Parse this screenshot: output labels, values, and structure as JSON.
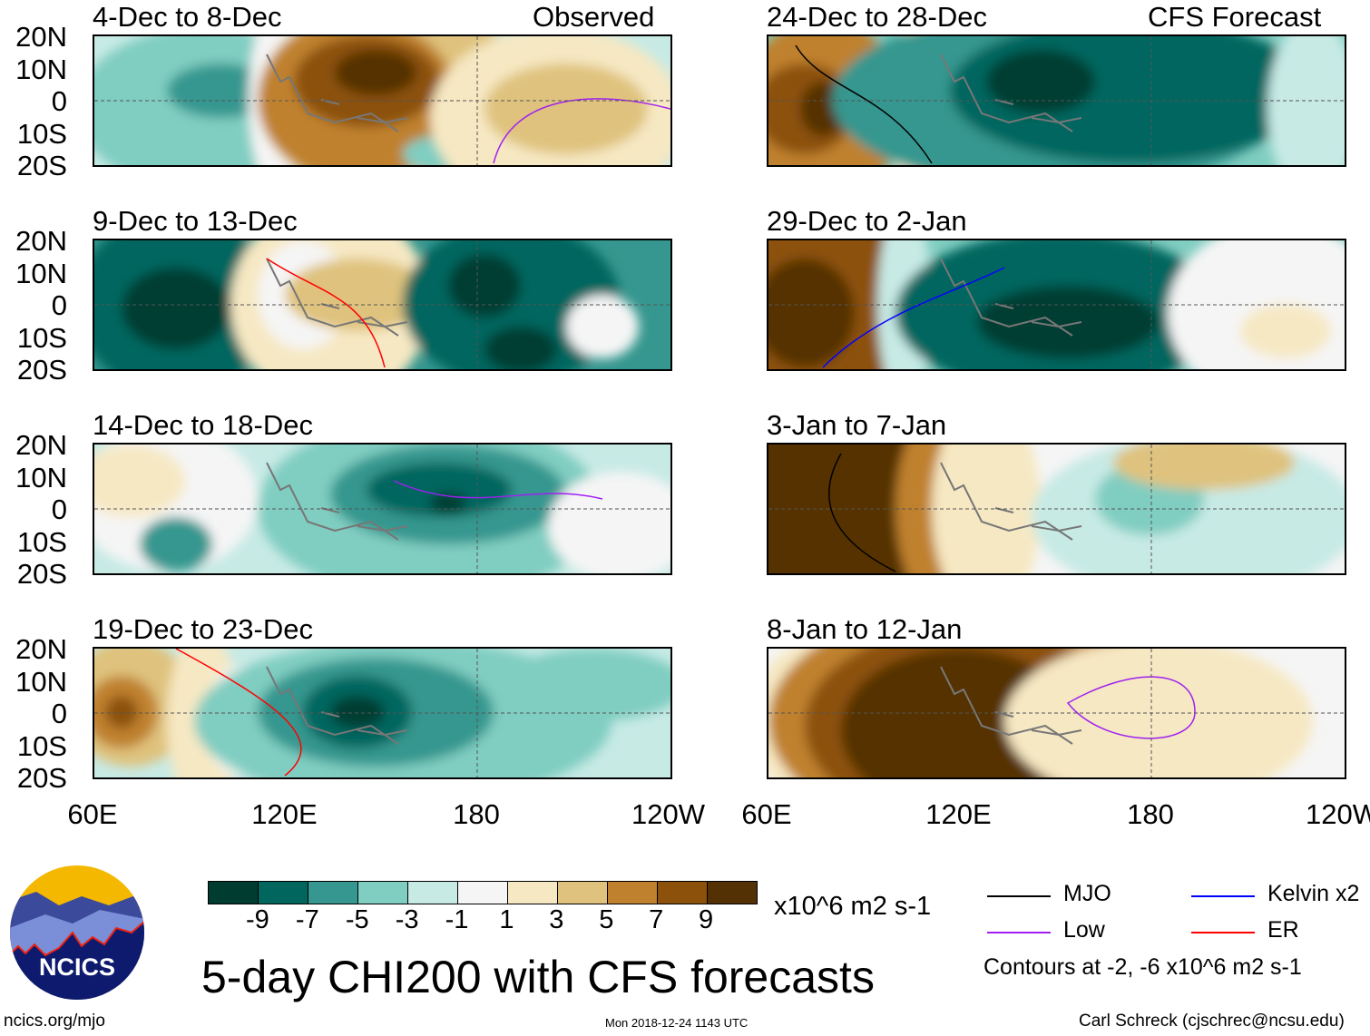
{
  "panels": [
    {
      "title": "4-Dec to 8-Dec",
      "label": "Observed"
    },
    {
      "title": "24-Dec to 28-Dec",
      "label": "CFS Forecast"
    },
    {
      "title": "9-Dec to 13-Dec",
      "label": ""
    },
    {
      "title": "29-Dec to 2-Jan",
      "label": ""
    },
    {
      "title": "14-Dec to 18-Dec",
      "label": ""
    },
    {
      "title": "3-Jan to 7-Jan",
      "label": ""
    },
    {
      "title": "19-Dec to 23-Dec",
      "label": ""
    },
    {
      "title": "8-Jan to 12-Jan",
      "label": ""
    }
  ],
  "lat_labels": [
    "20N",
    "10N",
    "0",
    "10S",
    "20S"
  ],
  "lon_labels": [
    "60E",
    "120E",
    "180",
    "120W"
  ],
  "colorbar": {
    "colors": [
      "#003c30",
      "#01665e",
      "#35978f",
      "#80cdc1",
      "#c7eae5",
      "#f5f5f5",
      "#f6e8c3",
      "#dfc27d",
      "#bf812d",
      "#8c510a",
      "#543005"
    ],
    "ticks": [
      "-9",
      "-7",
      "-5",
      "-3",
      "-1",
      "1",
      "3",
      "5",
      "7",
      "9"
    ],
    "units": "x10^6 m2 s-1"
  },
  "title": "5-day CHI200 with CFS forecasts",
  "legend": {
    "items": [
      {
        "label": "MJO",
        "color": "#000000"
      },
      {
        "label": "Kelvin x2",
        "color": "#0000ff"
      },
      {
        "label": "Low",
        "color": "#a020f0"
      },
      {
        "label": "ER",
        "color": "#ff0000"
      }
    ],
    "note": "Contours at -2, -6 x10^6 m2 s-1"
  },
  "logo_text": "NCICS",
  "footer": {
    "url": "ncics.org/mjo",
    "timestamp": "Mon 2018-12-24 1143 UTC",
    "credit": "Carl Schreck (cjschrec@ncsu.edu)"
  }
}
